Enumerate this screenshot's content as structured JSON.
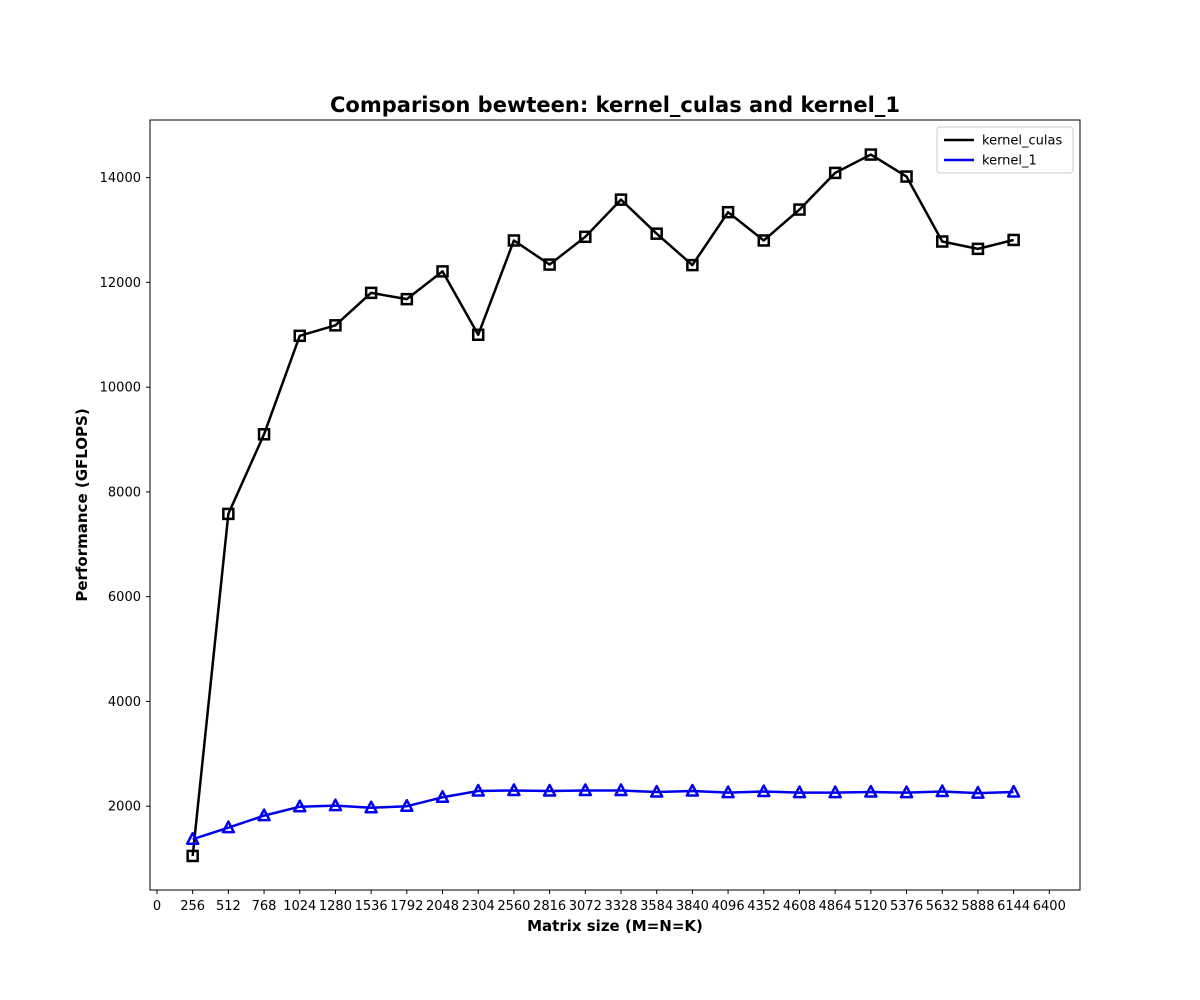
{
  "chart_data": {
    "type": "line",
    "title": "Comparison bewteen: kernel_culas and kernel_1",
    "xlabel": "Matrix size (M=N=K)",
    "ylabel": "Performance (GFLOPS)",
    "xlim": [
      -50,
      6620
    ],
    "ylim": [
      400,
      15100
    ],
    "xticks": [
      0,
      256,
      512,
      768,
      1024,
      1280,
      1536,
      1792,
      2048,
      2304,
      2560,
      2816,
      3072,
      3328,
      3584,
      3840,
      4096,
      4352,
      4608,
      4864,
      5120,
      5376,
      5632,
      5888,
      6144,
      6400
    ],
    "yticks": [
      2000,
      4000,
      6000,
      8000,
      10000,
      12000,
      14000
    ],
    "grid": false,
    "legend_position": "top-right",
    "x": [
      256,
      512,
      768,
      1024,
      1280,
      1536,
      1792,
      2048,
      2304,
      2560,
      2816,
      3072,
      3328,
      3584,
      3840,
      4096,
      4352,
      4608,
      4864,
      5120,
      5376,
      5632,
      5888,
      6144
    ],
    "series": [
      {
        "name": "kernel_culas",
        "color": "#000000",
        "marker": "square",
        "values": [
          1050,
          7580,
          9100,
          10980,
          11180,
          11800,
          11680,
          12210,
          11000,
          12800,
          12340,
          12870,
          13580,
          12930,
          12330,
          13340,
          12800,
          13390,
          14090,
          14440,
          14020,
          12780,
          12640,
          12810
        ]
      },
      {
        "name": "kernel_1",
        "color": "#0000ee",
        "marker": "triangle",
        "values": [
          1370,
          1590,
          1820,
          1990,
          2010,
          1970,
          2000,
          2170,
          2290,
          2300,
          2290,
          2300,
          2300,
          2270,
          2290,
          2260,
          2280,
          2260,
          2260,
          2270,
          2260,
          2280,
          2250,
          2270
        ]
      }
    ]
  }
}
